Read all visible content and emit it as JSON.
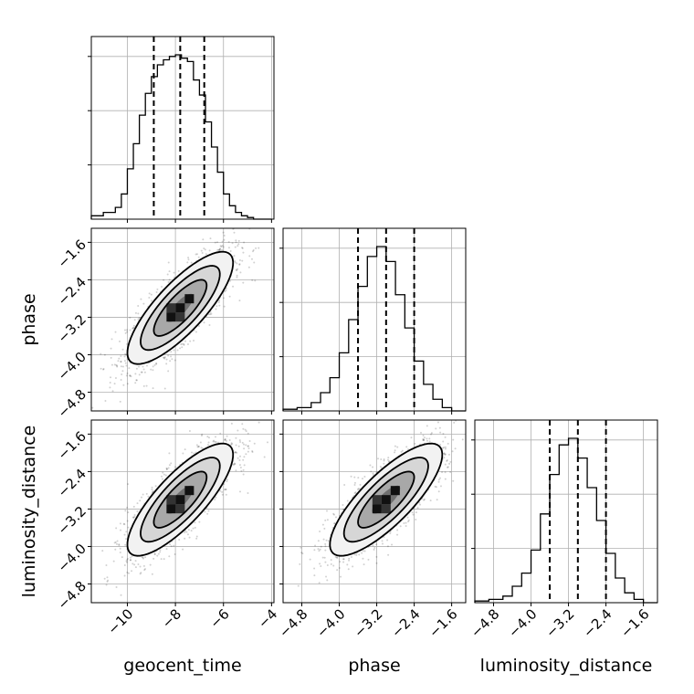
{
  "chart_data": {
    "type": "corner",
    "parameters": [
      "geocent_time",
      "phase",
      "luminosity_distance"
    ],
    "ranges": {
      "geocent_time": [
        -11.5,
        -3.9
      ],
      "phase": [
        -5.2,
        -1.3
      ],
      "luminosity_distance": [
        -5.2,
        -1.3
      ]
    },
    "tick_values": {
      "geocent_time": [
        -10,
        -8,
        -6,
        -4
      ],
      "phase": [
        -4.8,
        -4.0,
        -3.2,
        -2.4,
        -1.6
      ],
      "luminosity_distance": [
        -4.8,
        -4.0,
        -3.2,
        -2.4,
        -1.6
      ]
    },
    "tick_labels": {
      "geocent_time": [
        "−10",
        "−8",
        "−6",
        "−4"
      ],
      "phase": [
        "−4.8",
        "−4.0",
        "−3.2",
        "−2.4",
        "−1.6"
      ],
      "luminosity_distance": [
        "−4.8",
        "−4.0",
        "−3.2",
        "−2.4",
        "−1.6"
      ]
    },
    "quantiles": {
      "geocent_time": [
        -8.9,
        -7.8,
        -6.8
      ],
      "phase": [
        -3.6,
        -3.0,
        -2.4
      ],
      "luminosity_distance": [
        -3.6,
        -3.0,
        -2.4
      ]
    },
    "histograms": {
      "geocent_time": {
        "edges": [
          -11.5,
          -11.0,
          -10.5,
          -10.25,
          -10.0,
          -9.75,
          -9.5,
          -9.25,
          -9.0,
          -8.75,
          -8.5,
          -8.25,
          -8.0,
          -7.75,
          -7.5,
          -7.25,
          -7.0,
          -6.75,
          -6.5,
          -6.25,
          -6.0,
          -5.75,
          -5.5,
          -5.25,
          -5.0,
          -4.75,
          -4.5,
          -4.0
        ],
        "counts": [
          2,
          4,
          7,
          15,
          30,
          45,
          62,
          75,
          85,
          92,
          95,
          97,
          98,
          96,
          94,
          83,
          74,
          58,
          43,
          28,
          15,
          8,
          4,
          2,
          1,
          0,
          0
        ]
      },
      "phase": {
        "edges": [
          -5.2,
          -4.9,
          -4.6,
          -4.4,
          -4.2,
          -4.0,
          -3.8,
          -3.6,
          -3.4,
          -3.2,
          -3.0,
          -2.8,
          -2.6,
          -2.4,
          -2.2,
          -2.0,
          -1.8,
          -1.6,
          -1.3
        ],
        "counts": [
          1,
          2,
          5,
          11,
          20,
          35,
          55,
          75,
          93,
          99,
          90,
          70,
          50,
          30,
          16,
          7,
          2,
          0
        ]
      },
      "luminosity_distance": {
        "edges": [
          -5.2,
          -4.9,
          -4.6,
          -4.4,
          -4.2,
          -4.0,
          -3.8,
          -3.6,
          -3.4,
          -3.2,
          -3.0,
          -2.8,
          -2.6,
          -2.4,
          -2.2,
          -2.0,
          -1.8,
          -1.6,
          -1.3
        ],
        "counts": [
          1,
          2,
          4,
          10,
          18,
          32,
          54,
          78,
          96,
          100,
          88,
          70,
          50,
          30,
          15,
          6,
          2,
          0
        ]
      }
    },
    "scatter_2d": [
      {
        "x": "geocent_time",
        "y": "phase",
        "mean": [
          -7.8,
          -3.0
        ],
        "sd": [
          1.1,
          0.6
        ],
        "rho": 0.8
      },
      {
        "x": "geocent_time",
        "y": "luminosity_distance",
        "mean": [
          -7.8,
          -3.0
        ],
        "sd": [
          1.1,
          0.6
        ],
        "rho": 0.8
      },
      {
        "x": "phase",
        "y": "luminosity_distance",
        "mean": [
          -3.0,
          -3.0
        ],
        "sd": [
          0.6,
          0.6
        ],
        "rho": 0.8
      }
    ],
    "contour_levels_sigma": [
      0.5,
      1.0,
      1.5,
      2.0
    ],
    "grid": true,
    "colors": {
      "line": "#000000",
      "grid": "#b0b0b0",
      "points": "#000000"
    }
  }
}
